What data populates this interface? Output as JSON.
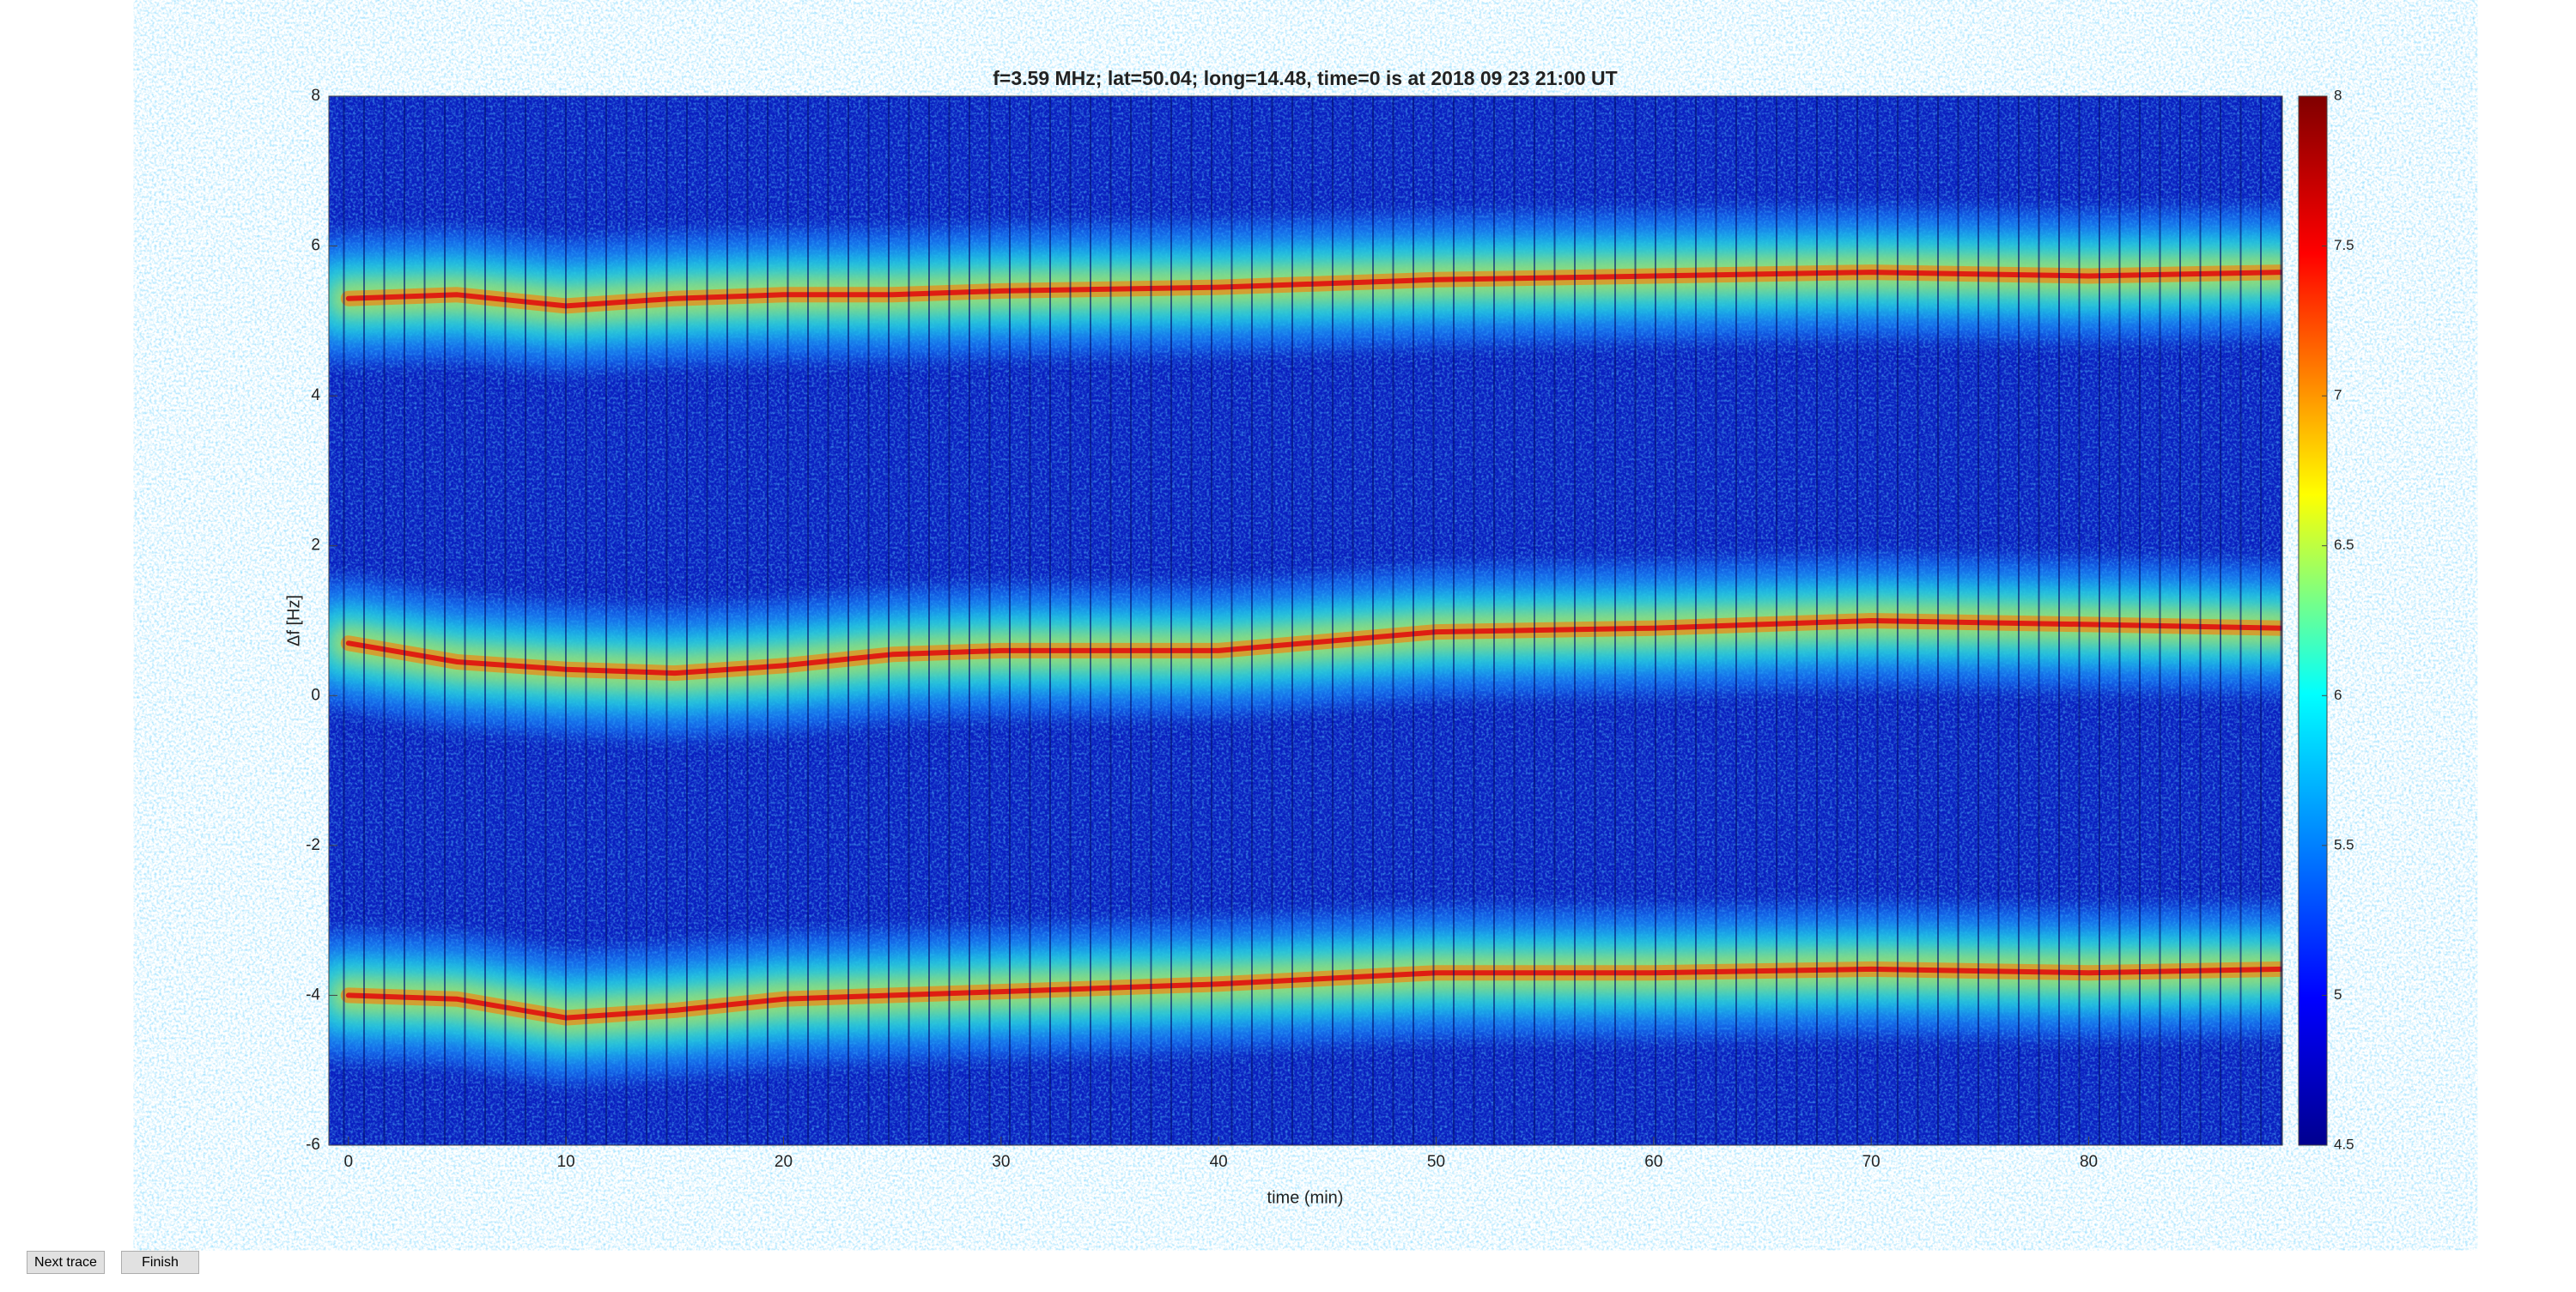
{
  "chart_data": {
    "type": "heatmap",
    "title": "f=3.59 MHz;  lat=50.04; long=14.48, time=0 is at 2018 09 23 21:00 UT",
    "xlabel": "time (min)",
    "ylabel": "Δf [Hz]",
    "x": [
      0,
      5,
      10,
      15,
      20,
      25,
      30,
      40,
      50,
      60,
      70,
      80,
      88.9
    ],
    "series": [
      {
        "color": "#e01010",
        "values": [
          5.3,
          5.35,
          5.2,
          5.3,
          5.35,
          5.35,
          5.4,
          5.45,
          5.55,
          5.6,
          5.65,
          5.6,
          5.65
        ]
      },
      {
        "color": "#e01010",
        "values": [
          0.7,
          0.45,
          0.35,
          0.3,
          0.4,
          0.55,
          0.6,
          0.6,
          0.85,
          0.9,
          1.0,
          0.95,
          0.9
        ]
      },
      {
        "color": "#e01010",
        "values": [
          -4.0,
          -4.05,
          -4.3,
          -4.2,
          -4.05,
          -4.0,
          -3.95,
          -3.85,
          -3.7,
          -3.7,
          -3.65,
          -3.7,
          -3.65
        ]
      }
    ],
    "xlim": [
      -0.9,
      88.9
    ],
    "xticks": [
      0,
      10,
      20,
      30,
      40,
      50,
      60,
      70,
      80
    ],
    "ylim": [
      -6,
      8
    ],
    "yticks": [
      -6,
      -4,
      -2,
      0,
      2,
      4,
      6,
      8
    ],
    "clim": [
      4.5,
      8
    ],
    "cticks": [
      4.5,
      5,
      5.5,
      6,
      6.5,
      7,
      7.5,
      8
    ]
  },
  "buttons": [
    "Next trace",
    "Finish"
  ]
}
